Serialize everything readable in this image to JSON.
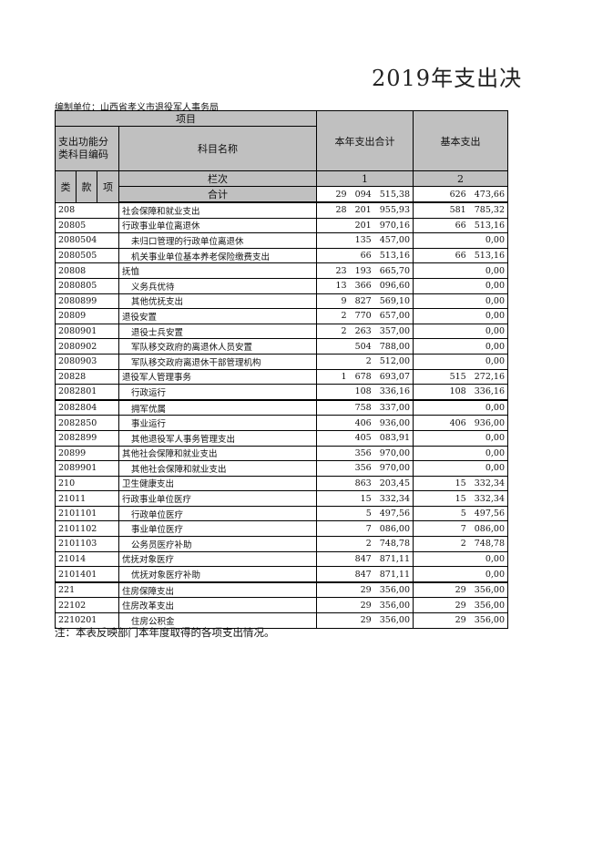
{
  "title": "2019年支出决",
  "unit": "编制单位：山西省孝义市退役军人事务局",
  "header": {
    "item": "项目",
    "code": "支出功能分类科目编码",
    "name": "科目名称",
    "total_col": "本年支出合计",
    "basic_col": "基本支出",
    "lei": "类",
    "kuan": "款",
    "xiang": "项",
    "lanci": "栏次",
    "col1": "1",
    "col2": "2",
    "heji": "合计",
    "heji_total": "29 094 515,38",
    "heji_basic": "626 473,66"
  },
  "rows": [
    {
      "code": "208",
      "name": "社会保障和就业支出",
      "total": "28 201 955,93",
      "basic": "581 785,32",
      "indent": false
    },
    {
      "code": "20805",
      "name": "行政事业单位离退休",
      "total": "201 970,16",
      "basic": "66 513,16",
      "indent": false
    },
    {
      "code": "2080504",
      "name": "未归口管理的行政单位离退休",
      "total": "135 457,00",
      "basic": "0,00",
      "indent": true
    },
    {
      "code": "2080505",
      "name": "机关事业单位基本养老保险缴费支出",
      "total": "66 513,16",
      "basic": "66 513,16",
      "indent": true
    },
    {
      "code": "20808",
      "name": "抚恤",
      "total": "23 193 665,70",
      "basic": "0,00",
      "indent": false
    },
    {
      "code": "2080805",
      "name": "义务兵优待",
      "total": "13 366 096,60",
      "basic": "0,00",
      "indent": true
    },
    {
      "code": "2080899",
      "name": "其他优抚支出",
      "total": "9 827 569,10",
      "basic": "0,00",
      "indent": true
    },
    {
      "code": "20809",
      "name": "退役安置",
      "total": "2 770 657,00",
      "basic": "0,00",
      "indent": false
    },
    {
      "code": "2080901",
      "name": "退役士兵安置",
      "total": "2 263 357,00",
      "basic": "0,00",
      "indent": true
    },
    {
      "code": "2080902",
      "name": "军队移交政府的离退休人员安置",
      "total": "504 788,00",
      "basic": "0,00",
      "indent": true
    },
    {
      "code": "2080903",
      "name": "军队移交政府离退休干部管理机构",
      "total": "2 512,00",
      "basic": "0,00",
      "indent": true
    },
    {
      "code": "20828",
      "name": "退役军人管理事务",
      "total": "1 678 693,07",
      "basic": "515 272,16",
      "indent": false
    },
    {
      "code": "2082801",
      "name": "行政运行",
      "total": "108 336,16",
      "basic": "108 336,16",
      "indent": true
    },
    {
      "code": "2082804",
      "name": "拥军优属",
      "total": "758 337,00",
      "basic": "0,00",
      "indent": true
    },
    {
      "code": "2082850",
      "name": "事业运行",
      "total": "406 936,00",
      "basic": "406 936,00",
      "indent": true
    },
    {
      "code": "2082899",
      "name": "其他退役军人事务管理支出",
      "total": "405 083,91",
      "basic": "0,00",
      "indent": true
    },
    {
      "code": "20899",
      "name": "其他社会保障和就业支出",
      "total": "356 970,00",
      "basic": "0,00",
      "indent": false
    },
    {
      "code": "2089901",
      "name": "其他社会保障和就业支出",
      "total": "356 970,00",
      "basic": "0,00",
      "indent": true
    },
    {
      "code": "210",
      "name": "卫生健康支出",
      "total": "863 203,45",
      "basic": "15 332,34",
      "indent": false
    },
    {
      "code": "21011",
      "name": "行政事业单位医疗",
      "total": "15 332,34",
      "basic": "15 332,34",
      "indent": false
    },
    {
      "code": "2101101",
      "name": "行政单位医疗",
      "total": "5 497,56",
      "basic": "5 497,56",
      "indent": true
    },
    {
      "code": "2101102",
      "name": "事业单位医疗",
      "total": "7 086,00",
      "basic": "7 086,00",
      "indent": true
    },
    {
      "code": "2101103",
      "name": "公务员医疗补助",
      "total": "2 748,78",
      "basic": "2 748,78",
      "indent": true
    },
    {
      "code": "21014",
      "name": "优抚对象医疗",
      "total": "847 871,11",
      "basic": "0,00",
      "indent": false
    },
    {
      "code": "2101401",
      "name": "优抚对象医疗补助",
      "total": "847 871,11",
      "basic": "0,00",
      "indent": true
    },
    {
      "code": "221",
      "name": "住房保障支出",
      "total": "29 356,00",
      "basic": "29 356,00",
      "indent": false
    },
    {
      "code": "22102",
      "name": "住房改革支出",
      "total": "29 356,00",
      "basic": "29 356,00",
      "indent": false
    },
    {
      "code": "2210201",
      "name": "住房公积金",
      "total": "29 356,00",
      "basic": "29 356,00",
      "indent": true
    }
  ],
  "note": "注：本表反映部门本年度取得的各项支出情况。"
}
